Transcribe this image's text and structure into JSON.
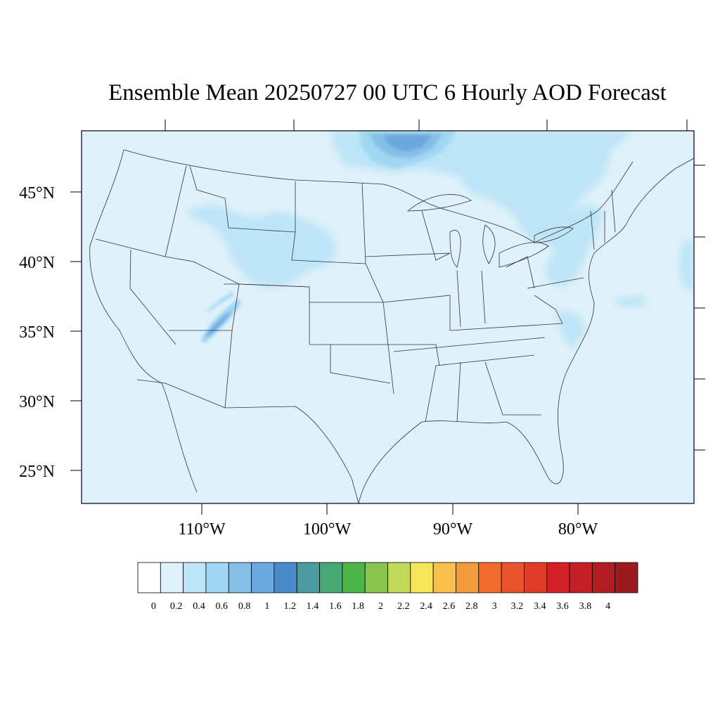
{
  "title": "Ensemble Mean 20250727 00 UTC 6 Hourly AOD Forecast",
  "map": {
    "projection": "lambert-conformal",
    "domain": "Continental United States",
    "background_level_color": "#dff1fa",
    "boundaries": [
      "coastlines",
      "state-borders",
      "country-borders"
    ],
    "lat_labels": [
      "45°N",
      "40°N",
      "35°N",
      "30°N",
      "25°N"
    ],
    "lon_labels": [
      "110°W",
      "100°W",
      "90°W",
      "80°W"
    ]
  },
  "colorbar": {
    "labels": [
      "0",
      "0.2",
      "0.4",
      "0.6",
      "0.8",
      "1",
      "1.2",
      "1.4",
      "1.6",
      "1.8",
      "2",
      "2.2",
      "2.4",
      "2.6",
      "2.8",
      "3",
      "3.2",
      "3.4",
      "3.6",
      "3.8",
      "4"
    ],
    "colors": [
      "#ffffff",
      "#dff1fa",
      "#bde5f7",
      "#a0d7f2",
      "#86bfe6",
      "#6ba8de",
      "#4c8bca",
      "#4a9a9f",
      "#47a875",
      "#4db54c",
      "#89c54e",
      "#c1d85a",
      "#f6e65a",
      "#f6c04a",
      "#f59b3f",
      "#f16c2e",
      "#e9542c",
      "#e13c29",
      "#d52027",
      "#c41f26",
      "#b01d23",
      "#9b1a1f"
    ]
  }
}
